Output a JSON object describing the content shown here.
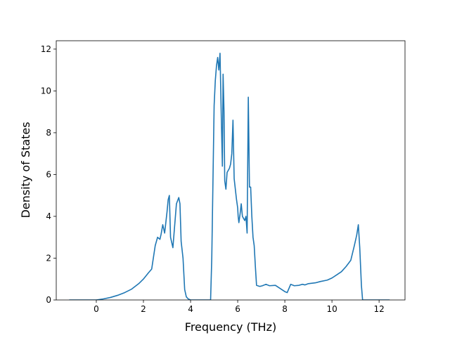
{
  "chart_data": {
    "type": "line",
    "title": "",
    "xlabel": "Frequency (THz)",
    "ylabel": "Density of States",
    "xlim": [
      -1.7,
      13.1
    ],
    "ylim": [
      0,
      12.4
    ],
    "xticks": [
      0,
      2,
      4,
      6,
      8,
      10,
      12
    ],
    "yticks": [
      0,
      2,
      4,
      6,
      8,
      10,
      12
    ],
    "grid": false,
    "legend": "none",
    "series": [
      {
        "color": "#1f77b4",
        "x": [
          -1.15,
          0.0,
          0.3,
          0.6,
          0.9,
          1.2,
          1.5,
          1.8,
          2.0,
          2.2,
          2.35,
          2.5,
          2.6,
          2.7,
          2.75,
          2.82,
          2.9,
          3.0,
          3.05,
          3.1,
          3.15,
          3.25,
          3.4,
          3.5,
          3.55,
          3.6,
          3.68,
          3.75,
          3.82,
          3.9,
          4.0,
          4.4,
          4.85,
          4.9,
          5.0,
          5.05,
          5.1,
          5.15,
          5.2,
          5.25,
          5.3,
          5.35,
          5.38,
          5.42,
          5.45,
          5.5,
          5.55,
          5.6,
          5.65,
          5.7,
          5.75,
          5.8,
          5.85,
          5.95,
          6.0,
          6.02,
          6.05,
          6.1,
          6.15,
          6.2,
          6.25,
          6.3,
          6.35,
          6.4,
          6.45,
          6.5,
          6.55,
          6.6,
          6.65,
          6.7,
          6.73,
          6.75,
          6.8,
          6.85,
          6.9,
          6.95,
          7.05,
          7.2,
          7.35,
          7.6,
          8.0,
          8.1,
          8.25,
          8.4,
          8.6,
          8.75,
          8.85,
          9.0,
          9.3,
          9.5,
          9.8,
          10.0,
          10.2,
          10.4,
          10.6,
          10.8,
          10.95,
          11.05,
          11.12,
          11.18,
          11.25,
          11.3,
          11.4,
          11.6,
          12.45
        ],
        "values": [
          0,
          0,
          0.05,
          0.12,
          0.22,
          0.35,
          0.52,
          0.78,
          1.0,
          1.28,
          1.48,
          2.6,
          3.0,
          2.9,
          3.15,
          3.6,
          3.2,
          4.2,
          4.8,
          5.0,
          3.0,
          2.5,
          4.6,
          4.9,
          4.6,
          2.8,
          2.0,
          0.5,
          0.15,
          0.05,
          0,
          0,
          0,
          2.0,
          9.3,
          10.5,
          11.2,
          11.6,
          11.0,
          11.8,
          9.0,
          6.4,
          10.8,
          9.0,
          5.7,
          5.3,
          6.1,
          6.2,
          6.3,
          6.5,
          7.0,
          8.6,
          5.8,
          4.8,
          4.4,
          4.0,
          3.7,
          4.1,
          4.6,
          4.0,
          3.9,
          3.8,
          4.0,
          3.2,
          9.7,
          5.4,
          5.4,
          4.0,
          3.0,
          2.6,
          2.0,
          1.6,
          0.7,
          0.68,
          0.66,
          0.65,
          0.68,
          0.75,
          0.68,
          0.7,
          0.4,
          0.35,
          0.75,
          0.68,
          0.7,
          0.75,
          0.72,
          0.78,
          0.82,
          0.88,
          0.95,
          1.05,
          1.2,
          1.35,
          1.6,
          1.9,
          2.6,
          3.1,
          3.6,
          2.5,
          0.7,
          0,
          0,
          0,
          0
        ]
      }
    ]
  }
}
